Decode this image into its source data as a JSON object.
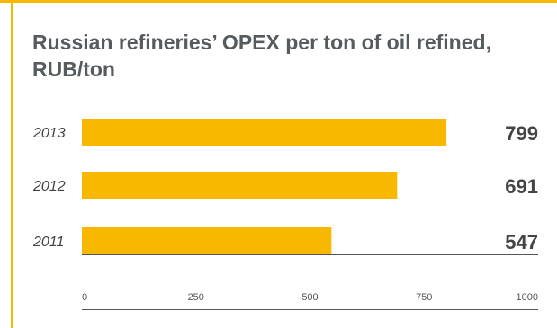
{
  "colors": {
    "accent": "#f9b800",
    "baseline": "#555555",
    "text": "#444444",
    "title": "#555b5f"
  },
  "chart_data": {
    "type": "bar",
    "orientation": "horizontal",
    "title": "Russian refineries’ OPEX per ton of oil refined, RUB/ton",
    "categories": [
      "2013",
      "2012",
      "2011"
    ],
    "values": [
      799,
      691,
      547
    ],
    "value_labels": [
      "799",
      "691",
      "547"
    ],
    "xlim": [
      0,
      1000
    ],
    "x_ticks": [
      0,
      250,
      500,
      750,
      1000
    ],
    "x_tick_labels": [
      "0",
      "250",
      "500",
      "750",
      "1000"
    ],
    "grid": false,
    "legend": "none"
  }
}
